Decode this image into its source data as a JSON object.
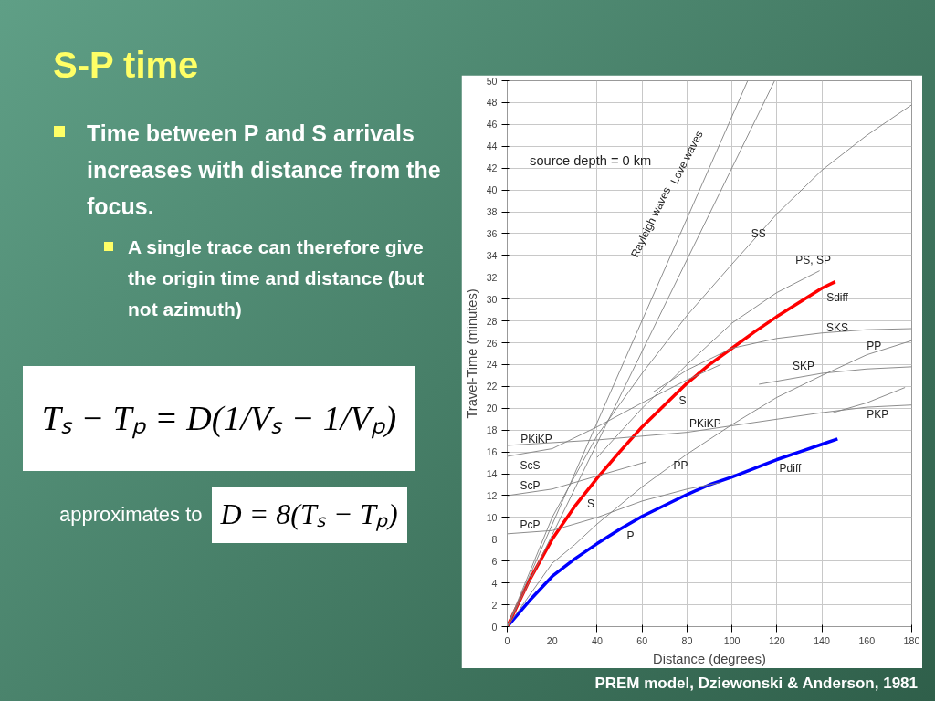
{
  "chart_data": {
    "type": "line",
    "title": "S-P time",
    "xlabel": "Distance (degrees)",
    "ylabel": "Travel-Time (minutes)",
    "xlim": [
      0,
      180
    ],
    "xticks": [
      0,
      20,
      40,
      60,
      80,
      100,
      120,
      140,
      160,
      180
    ],
    "ylim": [
      0,
      50
    ],
    "yticks": [
      0,
      2,
      4,
      6,
      8,
      10,
      12,
      14,
      16,
      18,
      20,
      22,
      24,
      26,
      28,
      30,
      32,
      34,
      36,
      38,
      40,
      42,
      44,
      46,
      48,
      50
    ],
    "grid": true,
    "marker": "none",
    "line_style": "solid",
    "series": [
      {
        "color": "#0000ff",
        "x": [
          0,
          10,
          20,
          30,
          40,
          50,
          60,
          70,
          80,
          90,
          100,
          110,
          120,
          130,
          140,
          147
        ],
        "values": [
          0,
          2.4,
          4.6,
          6.2,
          7.6,
          8.9,
          10.1,
          11.1,
          12.1,
          13.0,
          13.7,
          14.5,
          15.3,
          16.0,
          16.7,
          17.2
        ]
      },
      {
        "color": "#ff0000",
        "x": [
          0,
          10,
          20,
          30,
          40,
          50,
          60,
          70,
          80,
          90,
          100,
          110,
          120,
          130,
          140,
          146
        ],
        "values": [
          0,
          4.3,
          8.0,
          11.0,
          13.6,
          16.0,
          18.3,
          20.3,
          22.3,
          24.0,
          25.5,
          27.0,
          28.4,
          29.7,
          31.0,
          31.6
        ]
      },
      {
        "color": "#808080",
        "x": [
          0,
          107
        ],
        "values": [
          0,
          50
        ]
      },
      {
        "color": "#808080",
        "x": [
          0,
          119
        ],
        "values": [
          0,
          50
        ]
      },
      {
        "color": "#808080",
        "x": [
          0,
          20,
          40,
          60,
          80,
          100,
          120,
          140,
          160,
          180
        ],
        "values": [
          0,
          10,
          17.5,
          23.2,
          28.5,
          33.2,
          37.8,
          41.8,
          45,
          47.8
        ]
      },
      {
        "color": "#808080",
        "x": [
          40,
          60,
          80,
          100,
          120,
          139
        ],
        "values": [
          15.5,
          20,
          24,
          27.8,
          30.6,
          32.6
        ]
      },
      {
        "color": "#808080",
        "x": [
          65,
          80,
          100,
          120,
          140,
          160,
          180
        ],
        "values": [
          21.5,
          23.5,
          25.5,
          26.4,
          26.9,
          27.2,
          27.3
        ]
      },
      {
        "color": "#808080",
        "x": [
          0,
          20,
          30,
          40,
          60,
          80,
          100,
          120,
          140,
          160,
          180
        ],
        "values": [
          0,
          5.8,
          7.5,
          9.4,
          12.8,
          15.8,
          18.5,
          21,
          23,
          24.9,
          26.2
        ]
      },
      {
        "color": "#808080",
        "x": [
          112,
          140,
          160,
          180
        ],
        "values": [
          22.2,
          23.2,
          23.6,
          23.8
        ]
      },
      {
        "color": "#808080",
        "x": [
          0,
          40,
          80,
          100,
          140,
          160,
          180
        ],
        "values": [
          16.6,
          17.1,
          17.8,
          18.4,
          19.6,
          20.1,
          20.3
        ]
      },
      {
        "color": "#808080",
        "x": [
          145,
          160,
          177
        ],
        "values": [
          19.6,
          20.5,
          21.9
        ]
      },
      {
        "color": "#808080",
        "x": [
          0,
          20,
          40,
          60,
          80,
          95
        ],
        "values": [
          15.6,
          16.3,
          18.3,
          20.5,
          22.6,
          24
        ]
      },
      {
        "color": "#808080",
        "x": [
          0,
          20,
          40,
          62
        ],
        "values": [
          12,
          12.6,
          13.8,
          15.1
        ]
      },
      {
        "color": "#808080",
        "x": [
          0,
          20,
          40,
          60,
          80,
          95
        ],
        "values": [
          8.5,
          8.8,
          10,
          11.5,
          12.6,
          13.2
        ]
      }
    ],
    "annotations": [
      "Time between P and S arrivals increases with distance from the focus.",
      "A single trace can therefore give the origin time and distance (but not azimuth)",
      "Tₛ − Tₚ = D(1/Vₛ − 1/Vₚ)",
      "approximates to",
      "D = 8(Tₛ − Tₚ)",
      "PREM model, Dziewonski & Anderson, 1981",
      "source depth = 0 km",
      {
        "text": "Rayleigh waves",
        "x": 70,
        "y": 32.7
      },
      {
        "text": "Love waves",
        "x": 90,
        "y": 37.8
      },
      {
        "text": "SS",
        "x": 120,
        "y": 37.8
      },
      {
        "text": "PS, SP",
        "x": 139,
        "y": 32.6
      },
      {
        "text": "Sdiff",
        "x": 140,
        "y": 31.0
      },
      {
        "text": "SKS",
        "x": 140,
        "y": 26.9
      },
      {
        "text": "PP",
        "x": 160,
        "y": 24.9
      },
      {
        "text": "SKP",
        "x": 140,
        "y": 23.2
      },
      {
        "text": "S",
        "x": 80,
        "y": 22.3
      },
      {
        "text": "PKiKP",
        "x": 80,
        "y": 17.8
      },
      {
        "text": "PKP",
        "x": 160,
        "y": 20.5
      },
      {
        "text": "PKiKP",
        "x": 0,
        "y": 16.6
      },
      {
        "text": "ScS",
        "x": 0,
        "y": 15.6
      },
      {
        "text": "ScP",
        "x": 0,
        "y": 12
      },
      {
        "text": "S",
        "x": 40,
        "y": 13.6
      },
      {
        "text": "PP",
        "x": 80,
        "y": 15.8
      },
      {
        "text": "Pdiff",
        "x": 130,
        "y": 16.0
      },
      {
        "text": "PcP",
        "x": 0,
        "y": 8.5
      },
      {
        "text": "P",
        "x": 50,
        "y": 8.9
      }
    ]
  }
}
